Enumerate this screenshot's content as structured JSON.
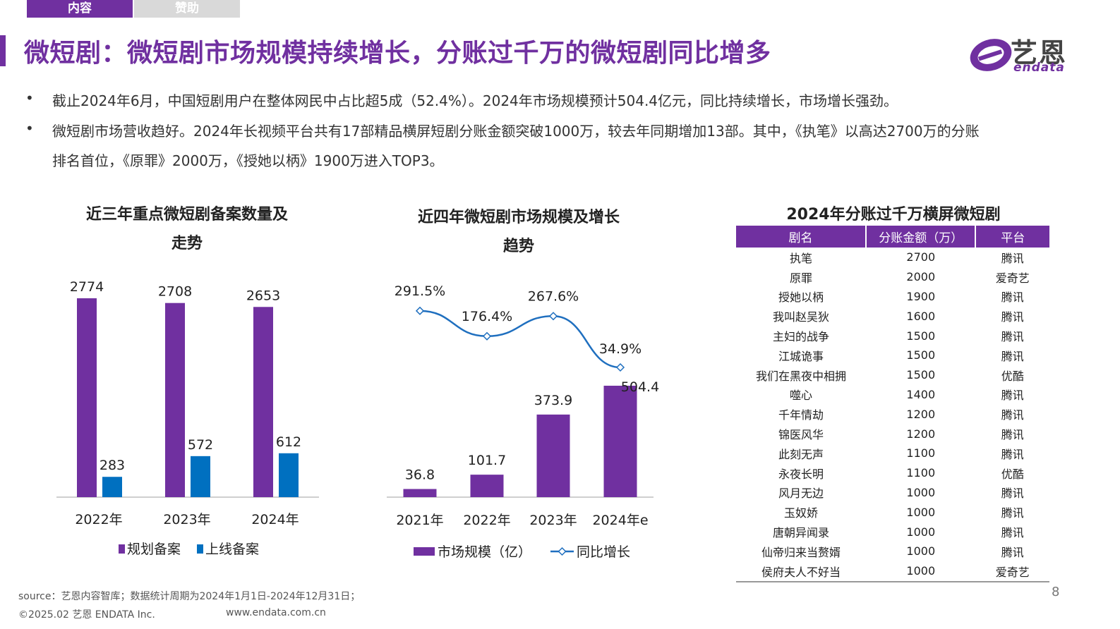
{
  "tabs": [
    {
      "label": "内容"
    },
    {
      "label": "赞助"
    }
  ],
  "title": "微短剧：微短剧市场规模持续增长，分账过千万的微短剧同比增多",
  "logo": {
    "cn": "艺恩",
    "en": "endata"
  },
  "bullets": [
    {
      "lines": [
        "截止2024年6月，中国短剧用户在整体网民中占比超5成（52.4%）。2024年市场规模预计504.4亿元，同比持续增长，市场增长强劲。"
      ]
    },
    {
      "lines": [
        "微短剧市场营收趋好。2024年长视频平台共有17部精品横屏短剧分账金额突破1000万，较去年同期增加13部。其中，《执笔》以高达2700万的分账",
        "排名首位，《原罪》2000万，《授她以柄》1900万进入TOP3。"
      ]
    }
  ],
  "colors": {
    "accent": "#7030a0",
    "blue": "#0070c0",
    "line": "#1f6fbf"
  },
  "chart_data": [
    {
      "type": "bar",
      "title_lines": [
        "近三年重点微短剧备案数量及",
        "走势"
      ],
      "categories": [
        "2022年",
        "2023年",
        "2024年"
      ],
      "series": [
        {
          "name": "规划备案",
          "values": [
            2774,
            2708,
            2653
          ],
          "color": "#7030a0"
        },
        {
          "name": "上线备案",
          "values": [
            283,
            572,
            612
          ],
          "color": "#0070c0"
        }
      ],
      "ylim": [
        0,
        3000
      ],
      "legend": "bottom"
    },
    {
      "type": "bar+line",
      "title_lines": [
        "近四年微短剧市场规模及增长",
        "趋势"
      ],
      "categories": [
        "2021年",
        "2022年",
        "2023年",
        "2024年e"
      ],
      "bar_series": {
        "name": "市场规模（亿）",
        "values": [
          36.8,
          101.7,
          373.9,
          504.4
        ],
        "color": "#7030a0"
      },
      "line_series": {
        "name": "同比增长",
        "values": [
          291.5,
          176.4,
          267.6,
          34.9
        ],
        "labels": [
          "291.5%",
          "176.4%",
          "267.6%",
          "34.9%"
        ],
        "color": "#1f6fbf"
      },
      "legend": "bottom"
    }
  ],
  "table": {
    "title": "2024年分账过千万横屏微短剧",
    "headers": [
      "剧名",
      "分账金额（万）",
      "平台"
    ],
    "rows": [
      [
        "执笔",
        "2700",
        "腾讯"
      ],
      [
        "原罪",
        "2000",
        "爱奇艺"
      ],
      [
        "授她以柄",
        "1900",
        "腾讯"
      ],
      [
        "我叫赵吴狄",
        "1600",
        "腾讯"
      ],
      [
        "主妇的战争",
        "1500",
        "腾讯"
      ],
      [
        "江城诡事",
        "1500",
        "腾讯"
      ],
      [
        "我们在黑夜中相拥",
        "1500",
        "优酷"
      ],
      [
        "噬心",
        "1400",
        "腾讯"
      ],
      [
        "千年情劫",
        "1200",
        "腾讯"
      ],
      [
        "锦医风华",
        "1200",
        "腾讯"
      ],
      [
        "此刻无声",
        "1100",
        "腾讯"
      ],
      [
        "永夜长明",
        "1100",
        "优酷"
      ],
      [
        "风月无边",
        "1000",
        "腾讯"
      ],
      [
        "玉奴娇",
        "1000",
        "腾讯"
      ],
      [
        "唐朝异闻录",
        "1000",
        "腾讯"
      ],
      [
        "仙帝归来当赘婿",
        "1000",
        "腾讯"
      ],
      [
        "侯府夫人不好当",
        "1000",
        "爱奇艺"
      ]
    ]
  },
  "footer": {
    "source": "source：艺恩内容智库；数据统计周期为2024年1月1日-2024年12月31日；",
    "copyright": "©2025.02 艺恩 ENDATA Inc.",
    "url": "www.endata.com.cn",
    "page": "8"
  }
}
